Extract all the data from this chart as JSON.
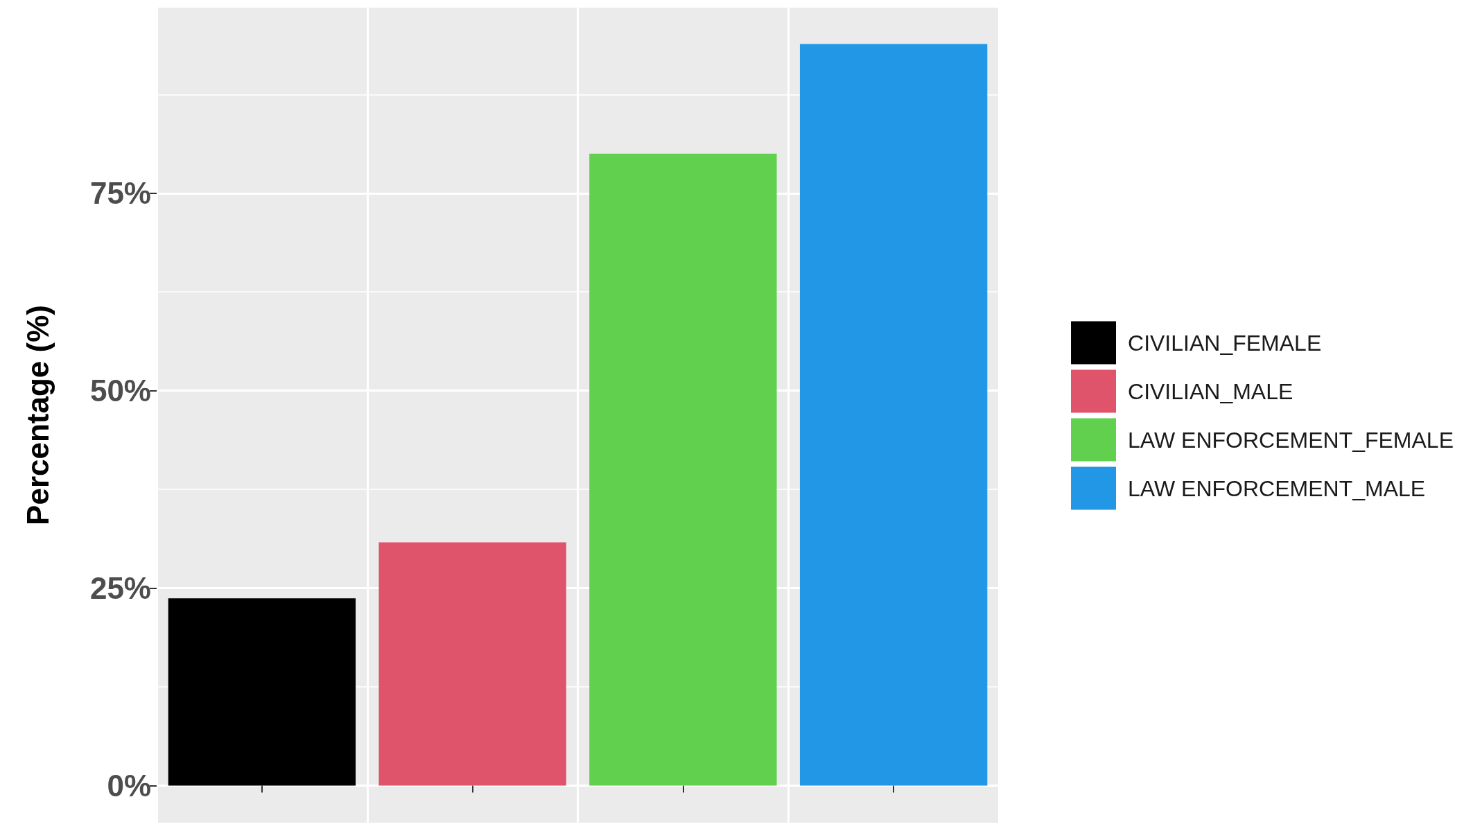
{
  "chart_data": {
    "type": "bar",
    "ylabel": "Percentage (%)",
    "categories": [
      null,
      null,
      null,
      null
    ],
    "series": [
      {
        "name": "CIVILIAN_FEMALE",
        "color": "#000000",
        "values": [
          23.7,
          null,
          null,
          null
        ]
      },
      {
        "name": "CIVILIAN_MALE",
        "color": "#df536b",
        "values": [
          null,
          30.8,
          null,
          null
        ]
      },
      {
        "name": "LAW ENFORCEMENT_FEMALE",
        "color": "#61d04f",
        "values": [
          null,
          null,
          80.0,
          null
        ]
      },
      {
        "name": "LAW ENFORCEMENT_MALE",
        "color": "#2297e6",
        "values": [
          null,
          null,
          null,
          93.9
        ]
      }
    ],
    "ylim": [
      -4.7,
      98.5
    ],
    "yticks": [
      {
        "value": 0,
        "label": "0%"
      },
      {
        "value": 12.5,
        "label": null
      },
      {
        "value": 25,
        "label": "25%"
      },
      {
        "value": 37.5,
        "label": null
      },
      {
        "value": 50,
        "label": "50%"
      },
      {
        "value": 62.5,
        "label": null
      },
      {
        "value": 75,
        "label": "75%"
      },
      {
        "value": 87.5,
        "label": null
      }
    ],
    "grid": true,
    "legend": "right",
    "tick_labels": "y"
  }
}
